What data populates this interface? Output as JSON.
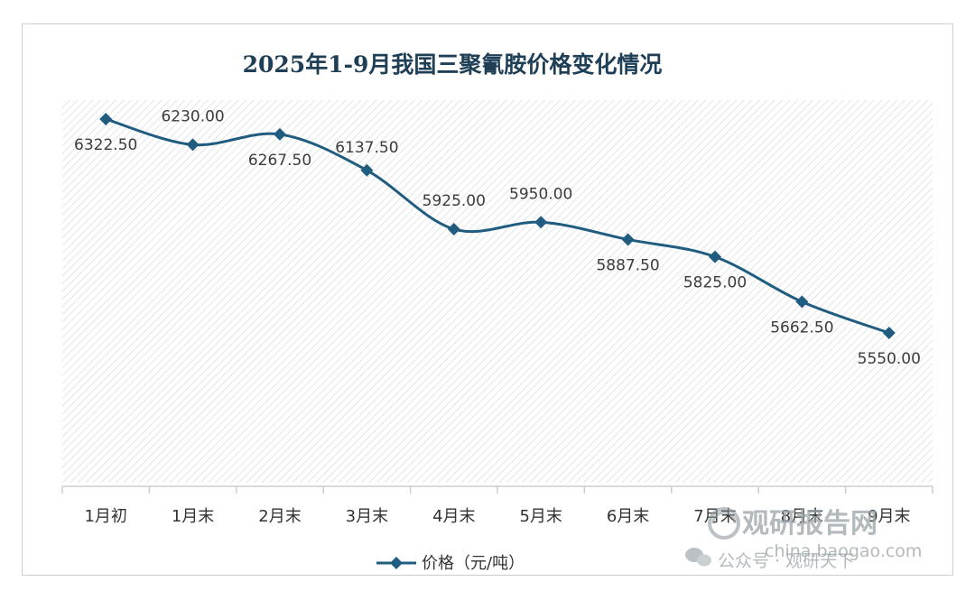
{
  "chart_data": {
    "type": "line",
    "title": "2025年1-9月我国三聚氰胺价格变化情况",
    "categories": [
      "1月初",
      "1月末",
      "2月末",
      "3月末",
      "4月末",
      "5月末",
      "6月末",
      "7月末",
      "8月末",
      "9月末"
    ],
    "series": [
      {
        "name": "价格（元/吨）",
        "values": [
          6322.5,
          6230.0,
          6267.5,
          6137.5,
          5925.0,
          5950.0,
          5887.5,
          5825.0,
          5662.5,
          5550.0
        ],
        "labels": [
          "6322.50",
          "6230.00",
          "6267.50",
          "6137.50",
          "5925.00",
          "5950.00",
          "5887.50",
          "5825.00",
          "5662.50",
          "5550.00"
        ]
      }
    ],
    "xlabel": "",
    "ylabel": "",
    "y_axis_visible": false,
    "legend_position": "bottom",
    "grid": false,
    "plot_background": "diagonal-hatch",
    "line_color": "#1f5c7f",
    "marker": "diamond"
  },
  "watermark": {
    "brand": "观研报告网",
    "site": "china.baogao.com",
    "account": "公众号 · 观研天下"
  }
}
